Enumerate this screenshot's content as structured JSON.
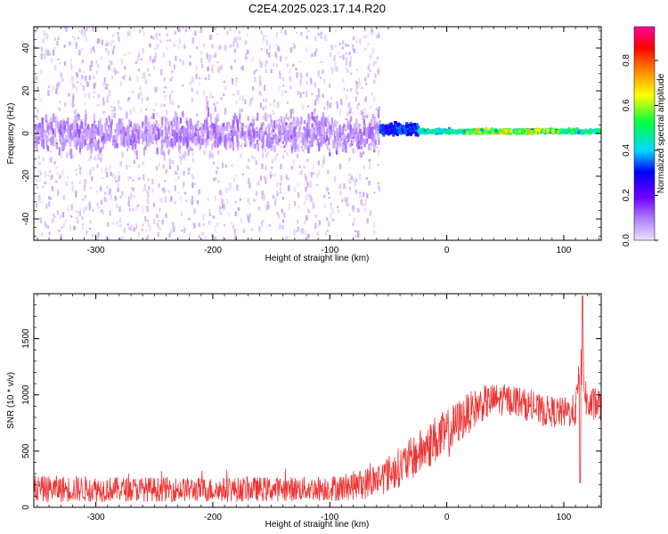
{
  "title": "C2E4.2025.023.17.14.R20",
  "colors": {
    "snr_line": "#ee3333",
    "background": "#ffffff",
    "axes": "#000000",
    "colorbar": [
      "#f0e0ff",
      "#b080ff",
      "#7000ff",
      "#0000ff",
      "#00d8ff",
      "#00ff40",
      "#ffff00",
      "#ff8000",
      "#ff0000",
      "#ff00a0"
    ]
  },
  "chart_data": [
    {
      "type": "heatmap",
      "title": "C2E4.2025.023.17.14.R20",
      "xlabel": "Height of straight line (km)",
      "ylabel": "Frequency (Hz)",
      "xlim": [
        -353,
        132
      ],
      "ylim": [
        -50,
        50
      ],
      "xticks": [
        -300,
        -200,
        -100,
        0,
        100
      ],
      "xtick_labels": [
        "-300",
        "-200",
        "-100",
        "0",
        "100"
      ],
      "yticks": [
        -40,
        -20,
        0,
        20,
        40
      ],
      "ytick_labels": [
        "-40",
        "-20",
        "0",
        "20",
        "40"
      ],
      "grid": false,
      "colorbar": {
        "label": "Normalized spectral amplitude",
        "range": [
          0,
          0.95
        ],
        "ticks": [
          0,
          0.2,
          0.4,
          0.6,
          0.8
        ],
        "tick_labels": [
          "0.0",
          "0.2",
          "0.4",
          "0.6",
          "0.8"
        ],
        "colormap": "rainbow"
      },
      "features": [
        {
          "x_range": [
            -353,
            -58
          ],
          "center_freq": 0,
          "band_half_width": 8,
          "typical_amplitude": 0.12,
          "note": "broad noisy band with speckle across full frequency range"
        },
        {
          "x_range": [
            -58,
            -25
          ],
          "center_freq": 2,
          "band_half_width": 4,
          "typical_amplitude": 0.45,
          "note": "transition region"
        },
        {
          "x_range": [
            -25,
            132
          ],
          "center_freq": 1,
          "band_half_width": 1.5,
          "typical_amplitude": 0.6,
          "note": "narrow strong tone, peaks near 0.9 around 60-85 km"
        }
      ]
    },
    {
      "type": "line",
      "xlabel": "Height of straight line (km)",
      "ylabel": "SNR (10 * v/v)",
      "xlim": [
        -353,
        132
      ],
      "ylim": [
        0,
        1900
      ],
      "xticks": [
        -300,
        -200,
        -100,
        0,
        100
      ],
      "xtick_labels": [
        "-300",
        "-200",
        "-100",
        "0",
        "100"
      ],
      "yticks": [
        0,
        500,
        1000,
        1500
      ],
      "ytick_labels": [
        "0",
        "500",
        "1000",
        "1500"
      ],
      "grid": false,
      "series": [
        {
          "x": [
            -353,
            -320,
            -280,
            -240,
            -200,
            -160,
            -120,
            -90,
            -70,
            -55,
            -40,
            -25,
            -10,
            0,
            10,
            20,
            30,
            40,
            50,
            60,
            70,
            80,
            90,
            100,
            110,
            115,
            120,
            132
          ],
          "y": [
            160,
            165,
            160,
            160,
            155,
            160,
            165,
            175,
            210,
            270,
            360,
            470,
            600,
            640,
            760,
            850,
            920,
            950,
            960,
            950,
            900,
            860,
            850,
            840,
            860,
            1300,
            900,
            920
          ],
          "spread": [
            120,
            120,
            110,
            110,
            110,
            110,
            110,
            120,
            140,
            160,
            180,
            200,
            220,
            230,
            200,
            180,
            160,
            150,
            140,
            140,
            140,
            140,
            140,
            140,
            150,
            200,
            160,
            150
          ]
        }
      ]
    }
  ]
}
